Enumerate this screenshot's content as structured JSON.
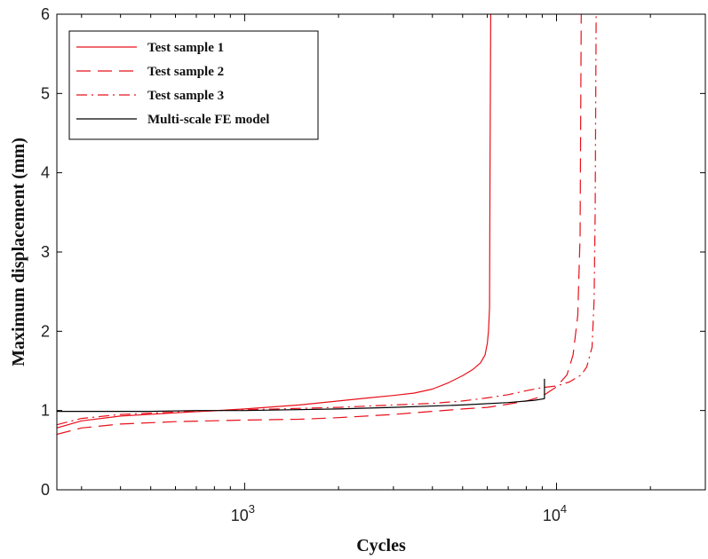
{
  "chart_data": {
    "type": "line",
    "title": "",
    "xlabel": "Cycles",
    "ylabel": "Maximum displacement (mm)",
    "x_scale": "log",
    "xlim": [
      250,
      30000
    ],
    "ylim": [
      0,
      6
    ],
    "x_ticks": [
      {
        "value": 1000,
        "base": "10",
        "exp": "3"
      },
      {
        "value": 10000,
        "base": "10",
        "exp": "4"
      }
    ],
    "y_ticks": [
      "0",
      "1",
      "2",
      "3",
      "4",
      "5",
      "6"
    ],
    "grid": false,
    "legend_position": "top-left",
    "series": [
      {
        "name": "Test sample 1",
        "color": "#e8101a",
        "dash": "solid",
        "points": [
          [
            250,
            0.78
          ],
          [
            300,
            0.87
          ],
          [
            400,
            0.93
          ],
          [
            600,
            0.97
          ],
          [
            1000,
            1.02
          ],
          [
            1500,
            1.07
          ],
          [
            2000,
            1.12
          ],
          [
            2500,
            1.16
          ],
          [
            3000,
            1.19
          ],
          [
            3500,
            1.22
          ],
          [
            4000,
            1.27
          ],
          [
            4500,
            1.35
          ],
          [
            5000,
            1.44
          ],
          [
            5400,
            1.52
          ],
          [
            5700,
            1.6
          ],
          [
            5900,
            1.7
          ],
          [
            6000,
            1.85
          ],
          [
            6050,
            2.0
          ],
          [
            6100,
            2.3
          ],
          [
            6120,
            4.0
          ],
          [
            6150,
            6.0
          ]
        ]
      },
      {
        "name": "Test sample 2",
        "color": "#e8101a",
        "dash": "long-dash",
        "points": [
          [
            250,
            0.7
          ],
          [
            300,
            0.78
          ],
          [
            400,
            0.83
          ],
          [
            600,
            0.86
          ],
          [
            1000,
            0.88
          ],
          [
            1500,
            0.89
          ],
          [
            2000,
            0.91
          ],
          [
            3000,
            0.95
          ],
          [
            4000,
            0.99
          ],
          [
            5000,
            1.02
          ],
          [
            6000,
            1.04
          ],
          [
            7000,
            1.08
          ],
          [
            8000,
            1.12
          ],
          [
            9000,
            1.18
          ],
          [
            10000,
            1.3
          ],
          [
            10800,
            1.45
          ],
          [
            11300,
            1.7
          ],
          [
            11700,
            2.2
          ],
          [
            11900,
            3.2
          ],
          [
            12000,
            6.0
          ]
        ]
      },
      {
        "name": "Test sample 3",
        "color": "#e8101a",
        "dash": "dash-dot",
        "points": [
          [
            250,
            0.82
          ],
          [
            300,
            0.9
          ],
          [
            400,
            0.95
          ],
          [
            600,
            0.98
          ],
          [
            1000,
            1.01
          ],
          [
            2000,
            1.04
          ],
          [
            3000,
            1.07
          ],
          [
            4000,
            1.09
          ],
          [
            5000,
            1.12
          ],
          [
            6000,
            1.16
          ],
          [
            7000,
            1.2
          ],
          [
            8000,
            1.25
          ],
          [
            9000,
            1.29
          ],
          [
            10000,
            1.31
          ],
          [
            11000,
            1.36
          ],
          [
            12000,
            1.45
          ],
          [
            12500,
            1.55
          ],
          [
            13000,
            1.8
          ],
          [
            13200,
            2.4
          ],
          [
            13300,
            3.5
          ],
          [
            13400,
            6.0
          ]
        ]
      },
      {
        "name": "Multi-scale FE model",
        "color": "#000000",
        "dash": "solid",
        "points": [
          [
            250,
            0.99
          ],
          [
            500,
            0.99
          ],
          [
            700,
            1.0
          ],
          [
            1000,
            1.0
          ],
          [
            2000,
            1.02
          ],
          [
            3000,
            1.04
          ],
          [
            5000,
            1.07
          ],
          [
            7000,
            1.1
          ],
          [
            8500,
            1.13
          ],
          [
            9150,
            1.15
          ],
          [
            9150,
            1.4
          ]
        ]
      }
    ]
  }
}
